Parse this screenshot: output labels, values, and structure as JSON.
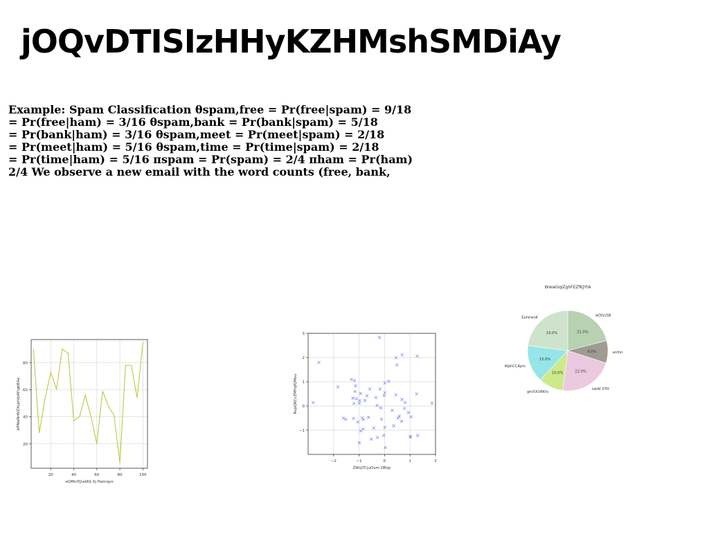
{
  "page": {
    "title": "jOQvDTISIzHHyKZHMshSMDiAy",
    "body_lines": [
      "Example: Spam Classification θspam,free = Pr(free|spam) = 9/18",
      "= Pr(free|ham) = 3/16 θspam,bank = Pr(bank|spam) = 5/18",
      "= Pr(bank|ham) = 3/16 θspam,meet = Pr(meet|spam) = 2/18",
      "= Pr(meet|ham) = 5/16 θspam,time = Pr(time|spam) = 2/18",
      "= Pr(time|ham) = 5/16 πspam = Pr(spam) = 2/4 πham = Pr(ham)",
      "2/4 We observe a new email with the word counts (free, bank,"
    ]
  },
  "chart_data": [
    {
      "type": "line",
      "title": "",
      "xlabel": "sGMtcfQudAS Xj Hamqyo",
      "ylabel": "bPNwNrWZXsjoVpAYrgbEAa",
      "xlim": [
        3,
        104
      ],
      "ylim": [
        2,
        97
      ],
      "xticks": [
        20,
        40,
        60,
        80,
        100
      ],
      "yticks": [
        20,
        40,
        60,
        80
      ],
      "grid": true,
      "color": "#c4cd4e",
      "x": [
        5,
        10,
        15,
        20,
        25,
        30,
        35,
        40,
        45,
        50,
        55,
        60,
        65,
        70,
        75,
        80,
        85,
        90,
        95,
        100
      ],
      "y": [
        90,
        28,
        53,
        73,
        60,
        90,
        87,
        37,
        40,
        56,
        40,
        20,
        59,
        48,
        41,
        6,
        78,
        78,
        54,
        95
      ]
    },
    {
      "type": "scatter",
      "title": "",
      "xlabel": "ZWsjTCjuOvm DBxp",
      "ylabel": "RupQKCcZMYqfQMvu",
      "xlim": [
        -3,
        2
      ],
      "ylim": [
        -2,
        3
      ],
      "xticks": [
        -2,
        -1,
        0,
        1,
        2
      ],
      "yticks": [
        -1,
        0,
        1,
        2,
        3
      ],
      "grid": true,
      "marker": "x",
      "color": "#7f8ff0",
      "x": [
        -0.2,
        1.28,
        0.45,
        0.48,
        0.69,
        -2.58,
        -1.3,
        -1.18,
        0.16,
        -1.14,
        -0.58,
        -0.18,
        0.01,
        -0.34,
        -1.83,
        -1.16,
        -0.98,
        -0.69,
        -0.02,
        0.44,
        0.68,
        -0.99,
        -1.11,
        -1.24,
        -1.2,
        -0.77,
        -0.29,
        0.01,
        0.81,
        -0.94,
        -1.52,
        -1.62,
        -1.22,
        -0.15,
        0.3,
        0.58,
        0.78,
        0.94,
        1.04,
        0.53,
        -0.12,
        -0.83,
        -0.88,
        -0.63,
        -1.05,
        -0.42,
        0.67,
        -0.84,
        -0.93,
        0.36,
        1.02,
        1.3,
        -0.52,
        -0.28,
        -0.03,
        0.03,
        1.01,
        1.26,
        -0.99,
        0.01,
        1.86,
        -2.8
      ],
      "y": [
        2.83,
        2.06,
        1.99,
        1.7,
        2.11,
        1.8,
        1.1,
        1.05,
        1.02,
        0.83,
        0.7,
        0.7,
        0.95,
        0.35,
        0.79,
        0.6,
        0.22,
        0.42,
        0.43,
        0.46,
        0.27,
        0.11,
        0.3,
        0.32,
        0.1,
        0.23,
        0.02,
        0.55,
        0.14,
        0.52,
        -0.55,
        -0.5,
        -0.51,
        -0.08,
        -0.18,
        -0.42,
        -0.1,
        -0.27,
        -0.45,
        -0.5,
        -0.55,
        -0.56,
        -0.49,
        -0.47,
        -0.66,
        -0.91,
        -0.63,
        -0.95,
        -1.03,
        -0.82,
        -1.25,
        -1.22,
        -1.37,
        -1.3,
        -1.22,
        -1.72,
        -1.29,
        0.5,
        -1.52,
        -0.88,
        0.12,
        0.14
      ]
    },
    {
      "type": "pie",
      "title": "WwwGqiZghFEZfKJYtA",
      "categories": [
        "wQfysSB",
        "enlhn",
        "lvbW STH",
        "gmXXURKtv",
        "WphCCAym",
        "EahewoK"
      ],
      "values": [
        21.0,
        9.0,
        22.0,
        10.0,
        15.0,
        23.0
      ],
      "value_labels": [
        "21.0%",
        "9.0%",
        "22.0%",
        "10.0%",
        "15.0%",
        "23.0%"
      ],
      "colors": [
        "#b7d1b1",
        "#9e9c92",
        "#ebc9de",
        "#cde98c",
        "#96e5e8",
        "#cfe3cc"
      ]
    }
  ]
}
